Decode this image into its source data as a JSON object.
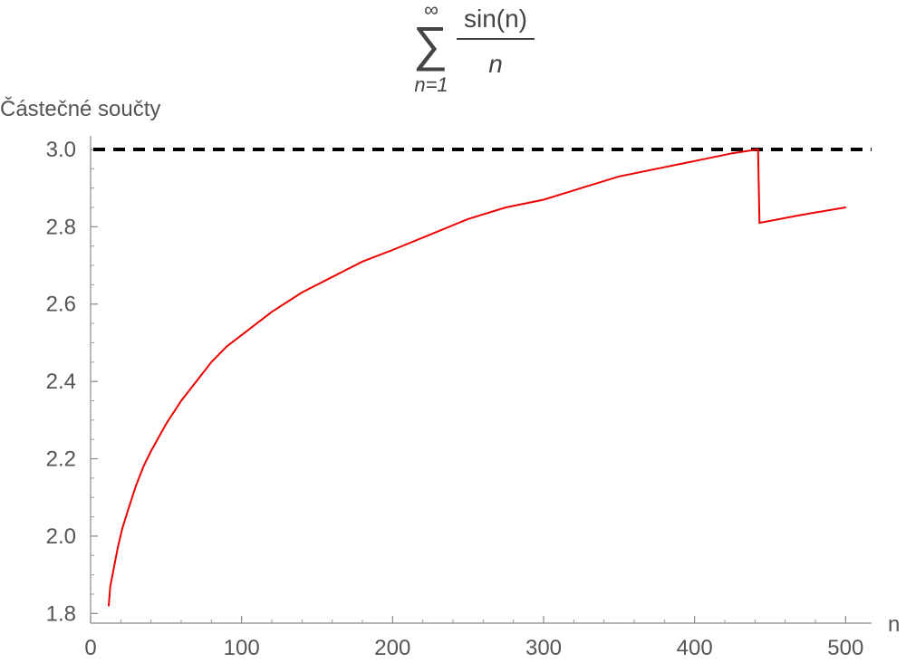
{
  "chart_data": {
    "type": "line",
    "title": {
      "sum_upper": "∞",
      "sum_lower": "n=1",
      "numerator": "sin(n)",
      "denominator": "n"
    },
    "xlabel": "n",
    "ylabel": "Částečné součty",
    "xlim": [
      0,
      510
    ],
    "ylim": [
      1.775,
      3.035
    ],
    "x_ticks": [
      0,
      100,
      200,
      300,
      400,
      500
    ],
    "x_tick_labels": [
      "0",
      "100",
      "200",
      "300",
      "400",
      "500"
    ],
    "y_ticks": [
      1.8,
      2.0,
      2.2,
      2.4,
      2.6,
      2.8,
      3.0
    ],
    "y_tick_labels": [
      "1.8",
      "2.0",
      "2.2",
      "2.4",
      "2.6",
      "2.8",
      "3.0"
    ],
    "grid": false,
    "reference_line": {
      "y": 3.0,
      "style": "dashed",
      "color": "#000000"
    },
    "series": [
      {
        "color": "#ee0000",
        "points": [
          [
            12,
            1.82
          ],
          [
            13,
            1.87
          ],
          [
            15,
            1.91
          ],
          [
            18,
            1.97
          ],
          [
            21,
            2.02
          ],
          [
            25,
            2.07
          ],
          [
            30,
            2.13
          ],
          [
            35,
            2.18
          ],
          [
            40,
            2.22
          ],
          [
            50,
            2.29
          ],
          [
            60,
            2.35
          ],
          [
            70,
            2.4
          ],
          [
            80,
            2.45
          ],
          [
            90,
            2.49
          ],
          [
            100,
            2.52
          ],
          [
            120,
            2.58
          ],
          [
            140,
            2.63
          ],
          [
            160,
            2.67
          ],
          [
            180,
            2.71
          ],
          [
            200,
            2.74
          ],
          [
            225,
            2.78
          ],
          [
            250,
            2.82
          ],
          [
            275,
            2.85
          ],
          [
            300,
            2.87
          ],
          [
            325,
            2.9
          ],
          [
            350,
            2.93
          ],
          [
            375,
            2.95
          ],
          [
            400,
            2.97
          ],
          [
            425,
            2.99
          ],
          [
            442,
            3.0
          ],
          [
            443,
            2.81
          ],
          [
            470,
            2.83
          ],
          [
            500,
            2.85
          ]
        ]
      }
    ]
  }
}
